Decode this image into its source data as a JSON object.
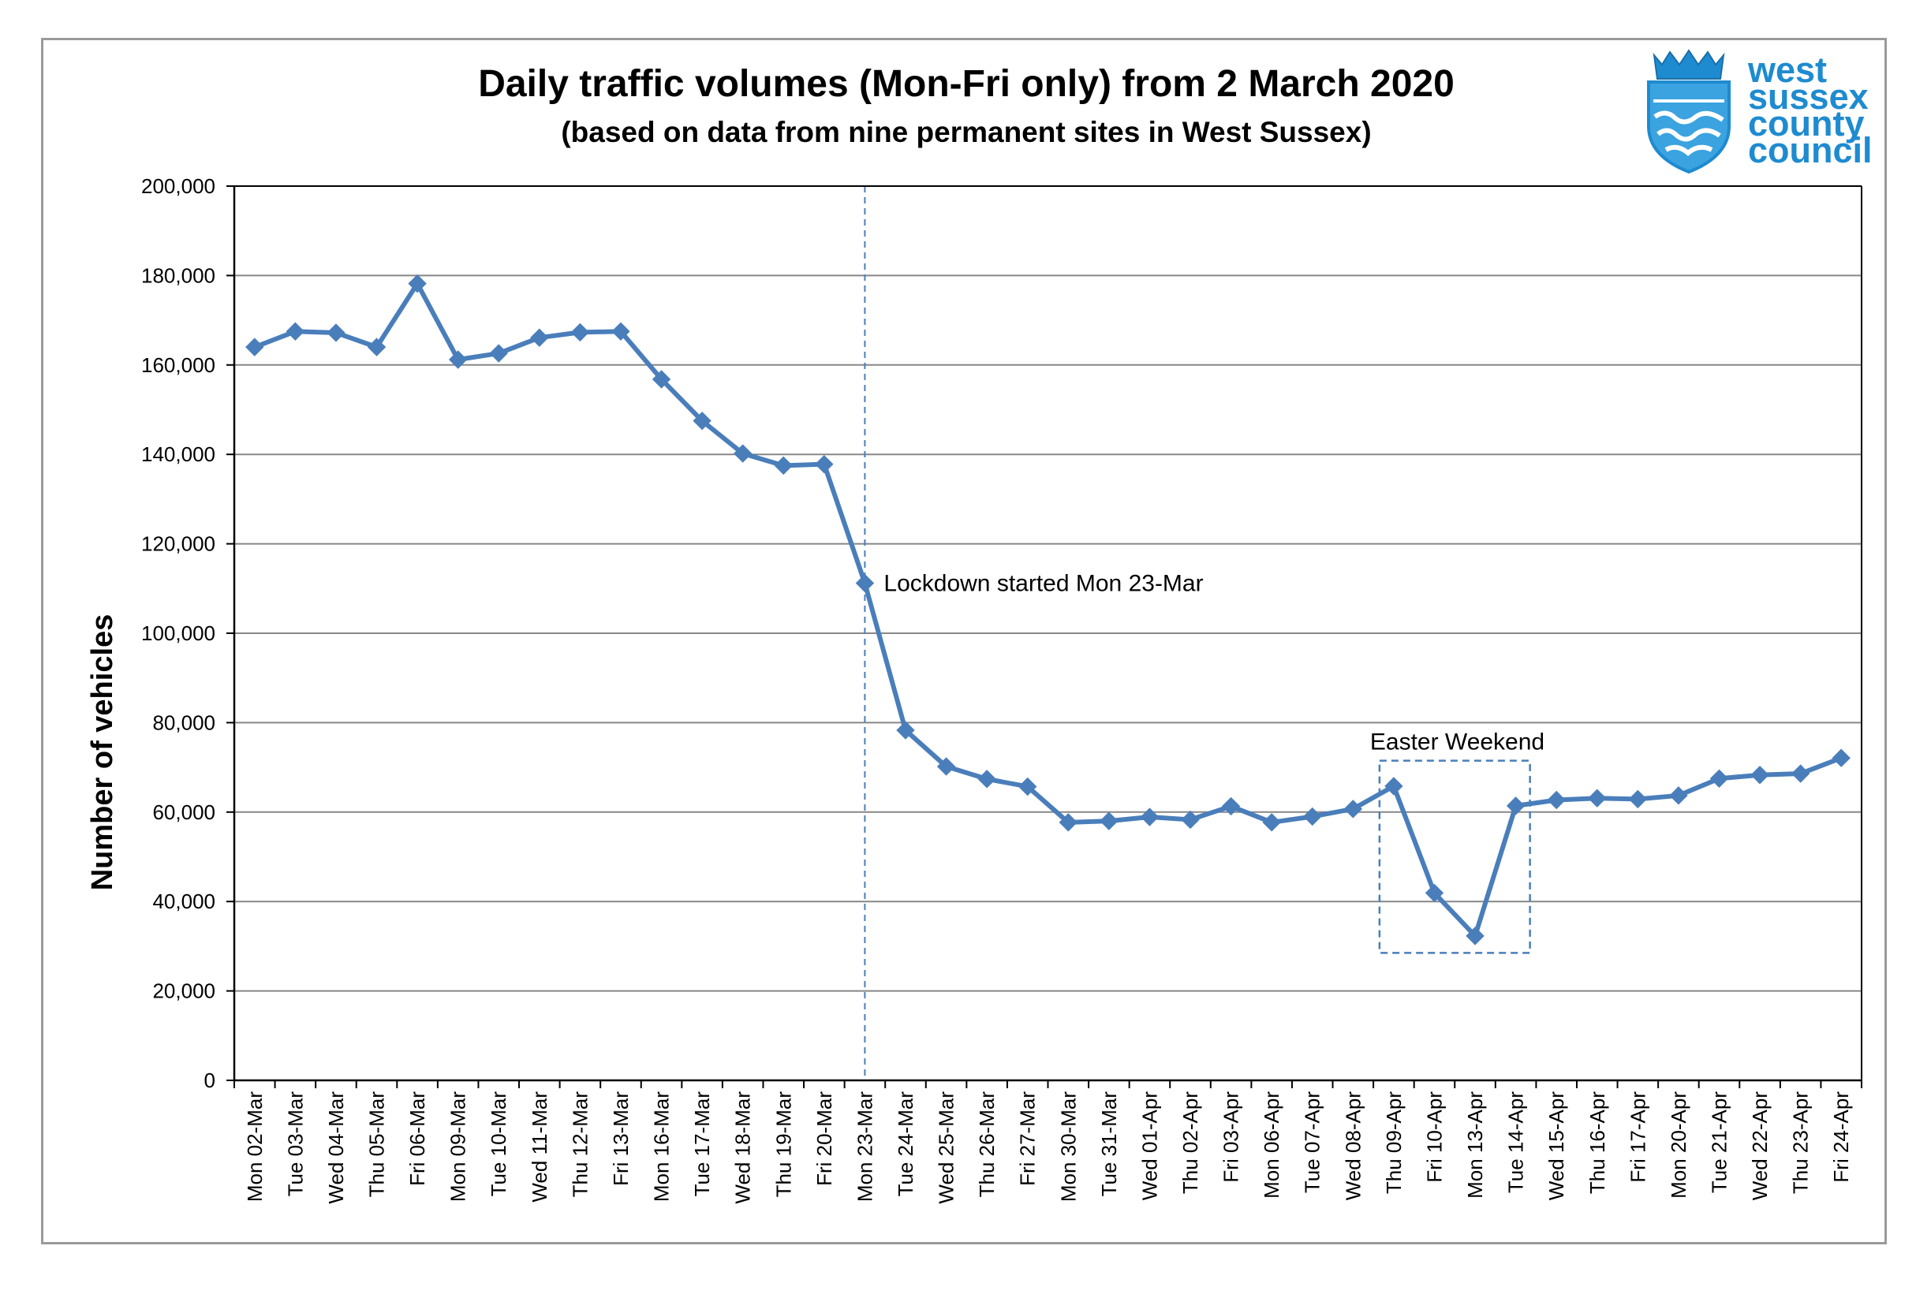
{
  "colors": {
    "series": "#4a7ebb",
    "grid": "#878787",
    "axis": "#000000",
    "logo": "#1e8bd0"
  },
  "logo": {
    "lines": [
      "west",
      "sussex",
      "county",
      "council"
    ],
    "icon": "crown-shield-icon"
  },
  "chart_data": {
    "type": "line",
    "title": "Daily traffic volumes (Mon-Fri only) from 2 March 2020",
    "subtitle": "(based on data from nine permanent sites in West Sussex)",
    "xlabel": "",
    "ylabel": "Number of vehicles",
    "ylim": [
      0,
      200000
    ],
    "yticks": [
      0,
      20000,
      40000,
      60000,
      80000,
      100000,
      120000,
      140000,
      160000,
      180000,
      200000
    ],
    "ytick_labels": [
      "0",
      "20,000",
      "40,000",
      "60,000",
      "80,000",
      "100,000",
      "120,000",
      "140,000",
      "160,000",
      "180,000",
      "200,000"
    ],
    "grid": "horizontal",
    "categories": [
      "Mon 02-Mar",
      "Tue 03-Mar",
      "Wed 04-Mar",
      "Thu 05-Mar",
      "Fri 06-Mar",
      "Mon 09-Mar",
      "Tue 10-Mar",
      "Wed 11-Mar",
      "Thu 12-Mar",
      "Fri 13-Mar",
      "Mon 16-Mar",
      "Tue 17-Mar",
      "Wed 18-Mar",
      "Thu 19-Mar",
      "Fri 20-Mar",
      "Mon 23-Mar",
      "Tue 24-Mar",
      "Wed 25-Mar",
      "Thu 26-Mar",
      "Fri 27-Mar",
      "Mon 30-Mar",
      "Tue 31-Mar",
      "Wed 01-Apr",
      "Thu 02-Apr",
      "Fri 03-Apr",
      "Mon 06-Apr",
      "Tue 07-Apr",
      "Wed 08-Apr",
      "Thu 09-Apr",
      "Fri 10-Apr",
      "Mon 13-Apr",
      "Tue 14-Apr",
      "Wed 15-Apr",
      "Thu 16-Apr",
      "Fri 17-Apr",
      "Mon 20-Apr",
      "Tue 21-Apr",
      "Wed 22-Apr",
      "Thu 23-Apr",
      "Fri 24-Apr"
    ],
    "series": [
      {
        "name": "",
        "values": [
          164000,
          167500,
          167200,
          164000,
          178200,
          161200,
          162600,
          166100,
          167300,
          167500,
          156800,
          147500,
          140200,
          137500,
          137800,
          111200,
          78300,
          70200,
          67400,
          65700,
          57700,
          58000,
          58900,
          58300,
          61300,
          57700,
          59000,
          60700,
          65800,
          41900,
          32300,
          61400,
          62700,
          63100,
          62900,
          63700,
          67500,
          68300,
          68600,
          72100
        ]
      }
    ],
    "annotations": [
      {
        "type": "vline",
        "category": "Mon 23-Mar",
        "text": "Lockdown started Mon 23-Mar"
      },
      {
        "type": "box",
        "from": "Thu 09-Apr",
        "to": "Tue 14-Apr",
        "y_range": [
          28500,
          71500
        ],
        "text": "Easter Weekend"
      }
    ]
  }
}
